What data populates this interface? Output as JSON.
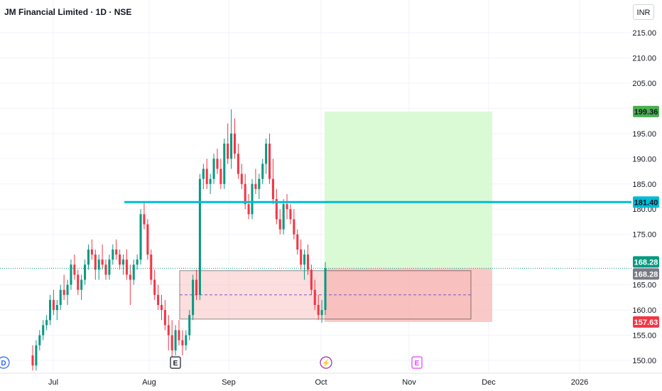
{
  "header": {
    "title": "JM Financial Limited · 1D · NSE",
    "currency": "INR"
  },
  "colors": {
    "up": "#089981",
    "down": "#f23645",
    "level_line": "#00bcd4",
    "target_zone": "#d6fad0",
    "stop_zone": "#f7b7b4",
    "entry_zone": "#fde2e0",
    "dashed_mid": "#7e57c2",
    "target_label": "#4caf50",
    "current_price_label": "#089981",
    "last_close_label": "#787b86",
    "stop_label": "#f23645",
    "level_label": "#00bcd4"
  },
  "chart_data": {
    "type": "candlestick",
    "title": "JM Financial Limited · 1D · NSE",
    "x_axis": {
      "tick_labels": [
        "Jul",
        "Aug",
        "Sep",
        "Oct",
        "Nov",
        "Dec",
        "2026"
      ]
    },
    "y_axis": {
      "range": [
        148,
        219
      ],
      "tick_labels": [
        "215.00",
        "210.00",
        "205.00",
        "200.00",
        "195.00",
        "190.00",
        "185.00",
        "180.00",
        "175.00",
        "170.00",
        "165.00",
        "160.00",
        "155.00",
        "150.00"
      ]
    },
    "price_labels": [
      {
        "text": "199.36",
        "value": 199.36,
        "role": "target"
      },
      {
        "text": "181.40",
        "value": 181.4,
        "role": "level"
      },
      {
        "text": "168.28",
        "value": 168.28,
        "role": "current"
      },
      {
        "text": "168.28",
        "value": 168.28,
        "role": "last-close"
      },
      {
        "text": "157.63",
        "value": 157.63,
        "role": "stop"
      }
    ],
    "horizontal_level": 181.4,
    "current_price": 168.28,
    "demand_zone": {
      "low": 158.2,
      "high": 167.8,
      "mid": 163.0
    },
    "position": {
      "entry": 168.28,
      "target": 199.36,
      "stop": 157.63
    },
    "event_markers": [
      {
        "label": "D",
        "type": "dividend"
      },
      {
        "label": "E",
        "type": "earnings"
      },
      {
        "label": "⚡",
        "type": "split"
      },
      {
        "label": "E",
        "type": "earnings-upcoming"
      }
    ],
    "candles": [
      [
        151,
        153,
        148,
        149
      ],
      [
        149,
        154,
        148,
        153
      ],
      [
        153,
        156,
        152,
        155
      ],
      [
        155,
        158,
        154,
        157
      ],
      [
        157,
        159,
        156,
        158
      ],
      [
        158,
        163,
        157,
        162
      ],
      [
        162,
        164,
        159,
        160
      ],
      [
        160,
        162,
        158,
        161
      ],
      [
        161,
        165,
        160,
        164
      ],
      [
        164,
        167,
        162,
        163
      ],
      [
        163,
        166,
        161,
        165
      ],
      [
        165,
        170,
        164,
        169
      ],
      [
        169,
        171,
        166,
        167
      ],
      [
        167,
        168,
        163,
        164
      ],
      [
        164,
        167,
        162,
        166
      ],
      [
        166,
        170,
        165,
        169
      ],
      [
        169,
        173,
        168,
        172
      ],
      [
        172,
        174,
        170,
        171
      ],
      [
        171,
        172,
        166,
        168
      ],
      [
        168,
        171,
        166,
        170
      ],
      [
        170,
        173,
        168,
        169
      ],
      [
        169,
        170,
        166,
        167
      ],
      [
        167,
        171,
        166,
        170
      ],
      [
        170,
        173,
        169,
        172
      ],
      [
        172,
        174,
        170,
        171
      ],
      [
        171,
        172,
        168,
        169
      ],
      [
        169,
        171,
        167,
        170
      ],
      [
        170,
        172,
        166,
        167
      ],
      [
        167,
        169,
        161,
        166
      ],
      [
        166,
        170,
        165,
        169
      ],
      [
        169,
        171,
        168,
        170
      ],
      [
        170,
        180,
        169,
        179
      ],
      [
        179,
        181.4,
        176,
        177
      ],
      [
        177,
        178,
        170,
        171
      ],
      [
        171,
        172,
        165,
        166
      ],
      [
        166,
        168,
        162,
        163
      ],
      [
        163,
        165,
        160,
        161
      ],
      [
        161,
        163,
        158,
        160
      ],
      [
        160,
        162,
        156,
        157
      ],
      [
        157,
        159,
        152,
        155
      ],
      [
        155,
        158,
        150,
        152
      ],
      [
        152,
        157,
        151,
        156
      ],
      [
        156,
        158,
        153,
        154
      ],
      [
        154,
        156,
        151,
        153
      ],
      [
        153,
        156,
        152,
        155
      ],
      [
        155,
        160,
        154,
        159
      ],
      [
        159,
        167,
        158,
        166
      ],
      [
        166,
        168,
        162,
        163
      ],
      [
        163,
        187,
        162,
        186
      ],
      [
        186,
        189,
        184,
        188
      ],
      [
        188,
        190,
        184,
        185
      ],
      [
        185,
        187,
        183,
        186
      ],
      [
        186,
        191,
        185,
        190
      ],
      [
        190,
        192,
        187,
        188
      ],
      [
        188,
        190,
        184,
        185
      ],
      [
        185,
        194,
        184,
        193
      ],
      [
        193,
        197,
        189,
        190
      ],
      [
        190,
        199.8,
        188,
        195
      ],
      [
        195,
        198,
        190,
        191
      ],
      [
        191,
        193,
        186,
        187
      ],
      [
        187,
        189,
        184,
        185
      ],
      [
        185,
        187,
        180,
        181
      ],
      [
        181,
        183,
        178,
        179
      ],
      [
        179,
        186,
        178,
        185
      ],
      [
        185,
        188,
        183,
        184
      ],
      [
        184,
        187,
        182,
        186
      ],
      [
        186,
        190,
        185,
        189
      ],
      [
        189,
        194,
        187,
        193
      ],
      [
        193,
        195,
        185,
        186
      ],
      [
        186,
        190,
        181,
        182
      ],
      [
        182,
        184,
        177,
        178
      ],
      [
        178,
        180,
        175,
        176
      ],
      [
        176,
        182,
        175,
        181
      ],
      [
        181,
        183,
        178,
        180
      ],
      [
        180,
        181,
        177,
        178
      ],
      [
        178,
        180,
        174,
        175
      ],
      [
        175,
        176,
        171,
        172
      ],
      [
        172,
        174,
        168,
        169
      ],
      [
        169,
        172,
        166,
        171
      ],
      [
        171,
        173,
        167,
        168
      ],
      [
        168,
        169,
        163,
        164
      ],
      [
        164,
        166,
        160,
        161
      ],
      [
        161,
        163,
        158,
        159
      ],
      [
        159,
        162,
        157.5,
        160
      ],
      [
        160,
        169.5,
        159,
        168.28
      ]
    ]
  }
}
